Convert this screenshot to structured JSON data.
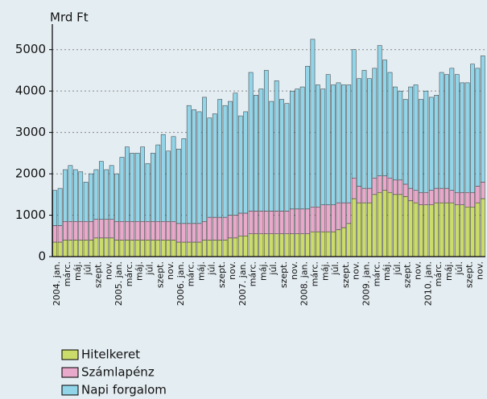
{
  "chart_data": {
    "type": "stacked_bar",
    "y_label": "Mrd Ft",
    "categories": [
      "2004. jan.",
      null,
      "márc.",
      null,
      "máj.",
      null,
      "júl.",
      null,
      "szept.",
      null,
      "nov.",
      null,
      "2005. jan.",
      null,
      "márc.",
      null,
      "máj.",
      null,
      "júl.",
      null,
      "szept.",
      null,
      "nov.",
      null,
      "2006. jan.",
      null,
      "márc.",
      null,
      "máj.",
      null,
      "júl.",
      null,
      "szept.",
      null,
      "nov.",
      null,
      "2007. jan.",
      null,
      "márc.",
      null,
      "máj.",
      null,
      "júl.",
      null,
      "szept.",
      null,
      "nov.",
      null,
      "2008. jan.",
      null,
      "márc.",
      null,
      "máj.",
      null,
      "júl.",
      null,
      "szept.",
      null,
      "nov.",
      null,
      "2009. jan.",
      null,
      "márc.",
      null,
      "máj.",
      null,
      "júl.",
      null,
      "szept.",
      null,
      "nov.",
      null,
      "2010. jan.",
      null,
      "márc.",
      null,
      "máj.",
      null,
      "júl.",
      null,
      "szept.",
      null,
      "nov.",
      null
    ],
    "series": [
      {
        "name": "Hitelkeret",
        "color": "#cbdc6a",
        "values": [
          350,
          350,
          400,
          400,
          400,
          400,
          400,
          400,
          450,
          450,
          450,
          450,
          400,
          400,
          400,
          400,
          400,
          400,
          400,
          400,
          400,
          400,
          400,
          400,
          350,
          350,
          350,
          350,
          350,
          400,
          400,
          400,
          400,
          400,
          450,
          450,
          500,
          500,
          550,
          550,
          550,
          550,
          550,
          550,
          550,
          550,
          550,
          550,
          550,
          550,
          600,
          600,
          600,
          600,
          600,
          650,
          700,
          800,
          1400,
          1300,
          1300,
          1300,
          1500,
          1550,
          1600,
          1550,
          1500,
          1500,
          1450,
          1350,
          1300,
          1250,
          1250,
          1250,
          1300,
          1300,
          1300,
          1300,
          1250,
          1250,
          1200,
          1200,
          1300,
          1400
        ]
      },
      {
        "name": "Számlapénz",
        "color": "#e9a9cb",
        "values": [
          400,
          400,
          450,
          450,
          450,
          450,
          450,
          450,
          450,
          450,
          450,
          450,
          450,
          450,
          450,
          450,
          450,
          450,
          450,
          450,
          450,
          450,
          450,
          450,
          450,
          450,
          450,
          450,
          450,
          450,
          550,
          550,
          550,
          550,
          550,
          550,
          550,
          550,
          550,
          550,
          550,
          550,
          550,
          550,
          550,
          550,
          600,
          600,
          600,
          600,
          600,
          600,
          650,
          650,
          650,
          650,
          600,
          500,
          500,
          400,
          350,
          350,
          400,
          400,
          350,
          350,
          350,
          350,
          300,
          300,
          300,
          300,
          300,
          350,
          350,
          350,
          350,
          300,
          300,
          300,
          350,
          350,
          400,
          400
        ]
      },
      {
        "name": "Napi forgalom",
        "color": "#92d4e8",
        "values": [
          850,
          900,
          1250,
          1350,
          1250,
          1200,
          950,
          1150,
          1200,
          1400,
          1200,
          1300,
          1150,
          1550,
          1800,
          1650,
          1650,
          1800,
          1400,
          1650,
          1850,
          2100,
          1700,
          2050,
          1800,
          2050,
          2850,
          2750,
          2700,
          3000,
          2400,
          2500,
          2850,
          2700,
          2750,
          2950,
          2350,
          2450,
          3350,
          2800,
          2950,
          3400,
          2650,
          3150,
          2700,
          2600,
          2850,
          2900,
          2950,
          3450,
          4050,
          2950,
          2800,
          3150,
          2900,
          2900,
          2850,
          2850,
          3100,
          2600,
          2850,
          2650,
          2650,
          3150,
          2800,
          2550,
          2250,
          2150,
          2050,
          2450,
          2550,
          2250,
          2450,
          2250,
          2250,
          2800,
          2750,
          2950,
          2850,
          2650,
          2650,
          3100,
          2850,
          3050
        ]
      }
    ],
    "ylim": [
      0,
      5500
    ],
    "yticks": [
      0,
      1000,
      2000,
      3000,
      4000,
      5000
    ],
    "grid": true
  }
}
